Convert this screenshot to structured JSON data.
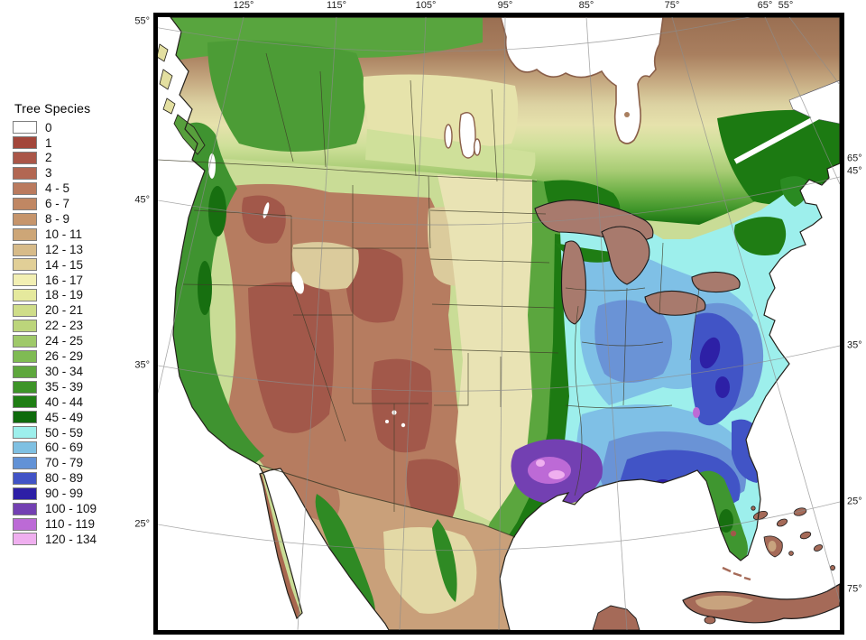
{
  "legend": {
    "title": "Tree Species",
    "entries": [
      {
        "label": "0",
        "color": "#FFFFFF"
      },
      {
        "label": "1",
        "color": "#A3463A"
      },
      {
        "label": "2",
        "color": "#AA5648"
      },
      {
        "label": "3",
        "color": "#B26752"
      },
      {
        "label": "4 - 5",
        "color": "#BA7A5E"
      },
      {
        "label": "6 - 7",
        "color": "#C08763"
      },
      {
        "label": "8 - 9",
        "color": "#C6956C"
      },
      {
        "label": "10 - 11",
        "color": "#CDA677"
      },
      {
        "label": "12 - 13",
        "color": "#D7BB89"
      },
      {
        "label": "14 - 15",
        "color": "#E1CF97"
      },
      {
        "label": "16 - 17",
        "color": "#F2EFB3"
      },
      {
        "label": "18 - 19",
        "color": "#E5E99D"
      },
      {
        "label": "20 - 21",
        "color": "#CFDD89"
      },
      {
        "label": "22 - 23",
        "color": "#BCD57B"
      },
      {
        "label": "24 - 25",
        "color": "#9FC969"
      },
      {
        "label": "26 - 29",
        "color": "#7FBB53"
      },
      {
        "label": "30 - 34",
        "color": "#5EA73D"
      },
      {
        "label": "35 - 39",
        "color": "#3D9428"
      },
      {
        "label": "40 - 44",
        "color": "#1F7E14"
      },
      {
        "label": "45 - 49",
        "color": "#0E6A0C"
      },
      {
        "label": "50 - 59",
        "color": "#9DEFEC"
      },
      {
        "label": "60 - 69",
        "color": "#7FC0E2"
      },
      {
        "label": "70 - 79",
        "color": "#6292D6"
      },
      {
        "label": "80 - 89",
        "color": "#4153C6"
      },
      {
        "label": "90 - 99",
        "color": "#2D1FA6"
      },
      {
        "label": "100 - 109",
        "color": "#7340B2"
      },
      {
        "label": "110 - 119",
        "color": "#BC6AD6"
      },
      {
        "label": "120 - 134",
        "color": "#EFAFEF"
      }
    ]
  },
  "map": {
    "top_longitude_labels": [
      "125°",
      "115°",
      "105°",
      "95°",
      "85°",
      "75°",
      "65°",
      "55°"
    ],
    "left_latitude_labels": [
      "55°",
      "45°",
      "35°",
      "25°"
    ],
    "right_edge_labels": [
      "65°",
      "45°",
      "35°",
      "25°",
      "75°"
    ]
  }
}
